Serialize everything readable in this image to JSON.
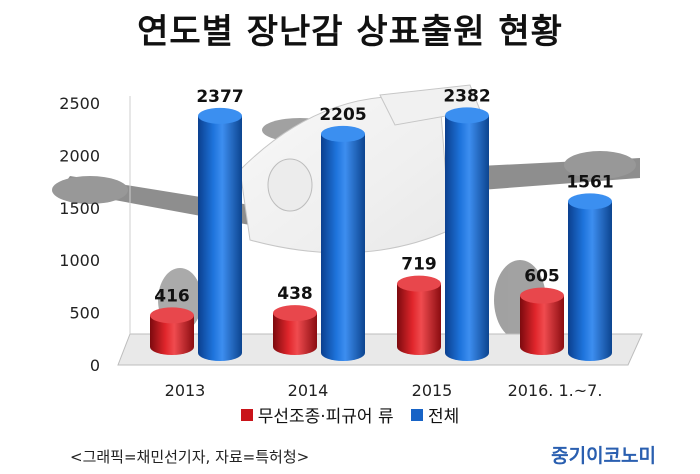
{
  "title": "연도별 장난감 상표출원 현황",
  "chart_data": {
    "type": "bar",
    "categories": [
      "2013",
      "2014",
      "2015",
      "2016. 1.~7."
    ],
    "series": [
      {
        "name": "무선조종·피규어 류",
        "values": [
          416,
          438,
          719,
          605
        ],
        "color": "#c9141a"
      },
      {
        "name": "전체",
        "values": [
          2377,
          2205,
          2382,
          1561
        ],
        "color": "#1763c6"
      }
    ],
    "y_ticks": [
      "0",
      "500",
      "1000",
      "1500",
      "2000",
      "2500"
    ],
    "ylim": [
      0,
      2500
    ],
    "grid": false,
    "legend_position": "bottom"
  },
  "footer": {
    "source": "<그래픽=채민선기자, 자료=특허청>",
    "brand": "중기이코노미"
  }
}
